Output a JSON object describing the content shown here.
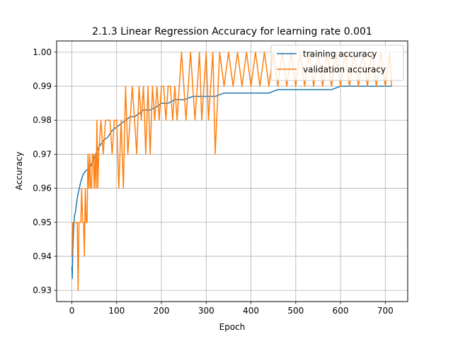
{
  "chart_data": {
    "type": "line",
    "title": "2.1.3 Linear Regression Accuracy for learning rate 0.001",
    "xlabel": "Epoch",
    "ylabel": "Accuracy",
    "xlim": [
      -34,
      750
    ],
    "ylim": [
      0.9267,
      1.0033
    ],
    "xticks": [
      0,
      100,
      200,
      300,
      400,
      500,
      600,
      700
    ],
    "yticks": [
      0.93,
      0.94,
      0.95,
      0.96,
      0.97,
      0.98,
      0.99,
      1.0
    ],
    "xtick_labels": [
      "0",
      "100",
      "200",
      "300",
      "400",
      "500",
      "600",
      "700"
    ],
    "ytick_labels": [
      "0.93",
      "0.94",
      "0.95",
      "0.96",
      "0.97",
      "0.98",
      "0.99",
      "1.00"
    ],
    "grid": true,
    "legend_position": "top-right",
    "series": [
      {
        "name": "training accuracy",
        "color": "#1f77b4",
        "x": [
          0,
          1,
          2,
          3,
          4,
          5,
          6,
          8,
          10,
          12,
          15,
          20,
          25,
          30,
          40,
          50,
          60,
          70,
          80,
          90,
          100,
          110,
          120,
          130,
          140,
          150,
          160,
          175,
          190,
          200,
          215,
          230,
          250,
          270,
          290,
          300,
          320,
          340,
          360,
          380,
          400,
          420,
          440,
          460,
          480,
          500,
          520,
          540,
          560,
          580,
          600,
          620,
          640,
          660,
          680,
          700,
          714
        ],
        "y": [
          0.937,
          0.9335,
          0.942,
          0.945,
          0.948,
          0.95,
          0.952,
          0.953,
          0.955,
          0.957,
          0.959,
          0.962,
          0.964,
          0.965,
          0.966,
          0.969,
          0.972,
          0.974,
          0.975,
          0.977,
          0.978,
          0.979,
          0.98,
          0.981,
          0.981,
          0.982,
          0.983,
          0.983,
          0.984,
          0.985,
          0.985,
          0.986,
          0.986,
          0.987,
          0.987,
          0.987,
          0.987,
          0.988,
          0.988,
          0.988,
          0.988,
          0.988,
          0.988,
          0.989,
          0.989,
          0.989,
          0.989,
          0.989,
          0.989,
          0.989,
          0.99,
          0.99,
          0.99,
          0.99,
          0.99,
          0.99,
          0.99
        ]
      },
      {
        "name": "validation accuracy",
        "color": "#ff7f0e",
        "x": [
          0,
          2,
          4,
          6,
          8,
          10,
          12,
          14,
          16,
          18,
          20,
          22,
          24,
          26,
          28,
          30,
          32,
          34,
          36,
          38,
          40,
          42,
          44,
          46,
          48,
          50,
          52,
          54,
          56,
          58,
          60,
          65,
          70,
          75,
          80,
          85,
          90,
          95,
          100,
          105,
          110,
          115,
          120,
          125,
          130,
          135,
          140,
          145,
          150,
          155,
          160,
          165,
          170,
          175,
          180,
          185,
          190,
          195,
          200,
          205,
          210,
          215,
          220,
          225,
          230,
          235,
          240,
          245,
          250,
          255,
          260,
          265,
          270,
          275,
          280,
          285,
          290,
          295,
          300,
          305,
          310,
          315,
          320,
          330,
          340,
          350,
          360,
          370,
          380,
          390,
          400,
          410,
          420,
          430,
          440,
          450,
          460,
          470,
          480,
          490,
          500,
          510,
          520,
          530,
          540,
          550,
          560,
          570,
          580,
          590,
          600,
          610,
          620,
          630,
          640,
          650,
          660,
          670,
          680,
          690,
          700,
          710,
          714
        ],
        "y": [
          0.94,
          0.95,
          0.95,
          0.95,
          0.95,
          0.95,
          0.95,
          0.93,
          0.95,
          0.95,
          0.95,
          0.96,
          0.95,
          0.95,
          0.94,
          0.96,
          0.95,
          0.95,
          0.97,
          0.96,
          0.97,
          0.96,
          0.96,
          0.97,
          0.97,
          0.96,
          0.97,
          0.96,
          0.98,
          0.96,
          0.97,
          0.98,
          0.97,
          0.98,
          0.98,
          0.98,
          0.97,
          0.98,
          0.98,
          0.96,
          0.98,
          0.96,
          0.99,
          0.97,
          0.98,
          0.99,
          0.98,
          0.97,
          0.99,
          0.98,
          0.99,
          0.97,
          0.99,
          0.97,
          0.99,
          0.98,
          0.99,
          0.98,
          0.99,
          0.99,
          0.98,
          0.99,
          0.99,
          0.98,
          0.99,
          0.98,
          0.99,
          1.0,
          0.99,
          0.98,
          0.99,
          1.0,
          0.99,
          0.98,
          0.99,
          1.0,
          0.98,
          0.99,
          1.0,
          0.98,
          0.99,
          1.0,
          0.97,
          1.0,
          0.99,
          1.0,
          0.99,
          1.0,
          0.99,
          1.0,
          0.99,
          1.0,
          0.99,
          1.0,
          0.99,
          1.0,
          0.99,
          1.0,
          0.99,
          1.0,
          0.99,
          1.0,
          0.99,
          1.0,
          0.99,
          1.0,
          0.99,
          1.0,
          0.99,
          1.0,
          0.99,
          1.0,
          0.99,
          1.0,
          0.99,
          1.0,
          0.99,
          1.0,
          0.99,
          1.0,
          0.99,
          1.0,
          0.99
        ]
      }
    ]
  }
}
